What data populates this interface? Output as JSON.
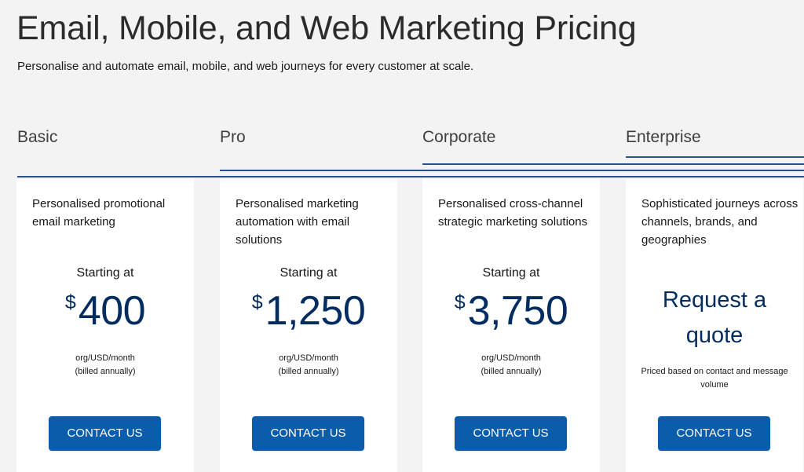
{
  "header": {
    "title": "Email, Mobile, and Web Marketing Pricing",
    "subtitle": "Personalise and automate email, mobile, and web journeys for every customer at scale."
  },
  "theme": {
    "background": "#f3f3f3",
    "card_background": "#ffffff",
    "accent_line": "#2d4e90",
    "price_color": "#032d60",
    "button_color": "#0b5cab",
    "button_text_color": "#ffffff"
  },
  "plans": [
    {
      "name": "Basic",
      "description": "Personalised promotional email marketing",
      "starting_label": "Starting at",
      "currency": "$",
      "price": "400",
      "unit": "org/USD/month",
      "billing": "(billed annually)",
      "cta": "CONTACT US"
    },
    {
      "name": "Pro",
      "description": "Personalised marketing automation with email solutions",
      "starting_label": "Starting at",
      "currency": "$",
      "price": "1,250",
      "unit": "org/USD/month",
      "billing": "(billed annually)",
      "cta": "CONTACT US"
    },
    {
      "name": "Corporate",
      "description": "Personalised cross-channel strategic marketing solutions",
      "starting_label": "Starting at",
      "currency": "$",
      "price": "3,750",
      "unit": "org/USD/month",
      "billing": "(billed annually)",
      "cta": "CONTACT US"
    },
    {
      "name": "Enterprise",
      "description": "Sophisticated journeys across channels, brands, and geographies",
      "quote_line1": "Request a",
      "quote_line2": "quote",
      "quote_note": "Priced based on contact and message volume",
      "cta": "CONTACT US"
    }
  ]
}
